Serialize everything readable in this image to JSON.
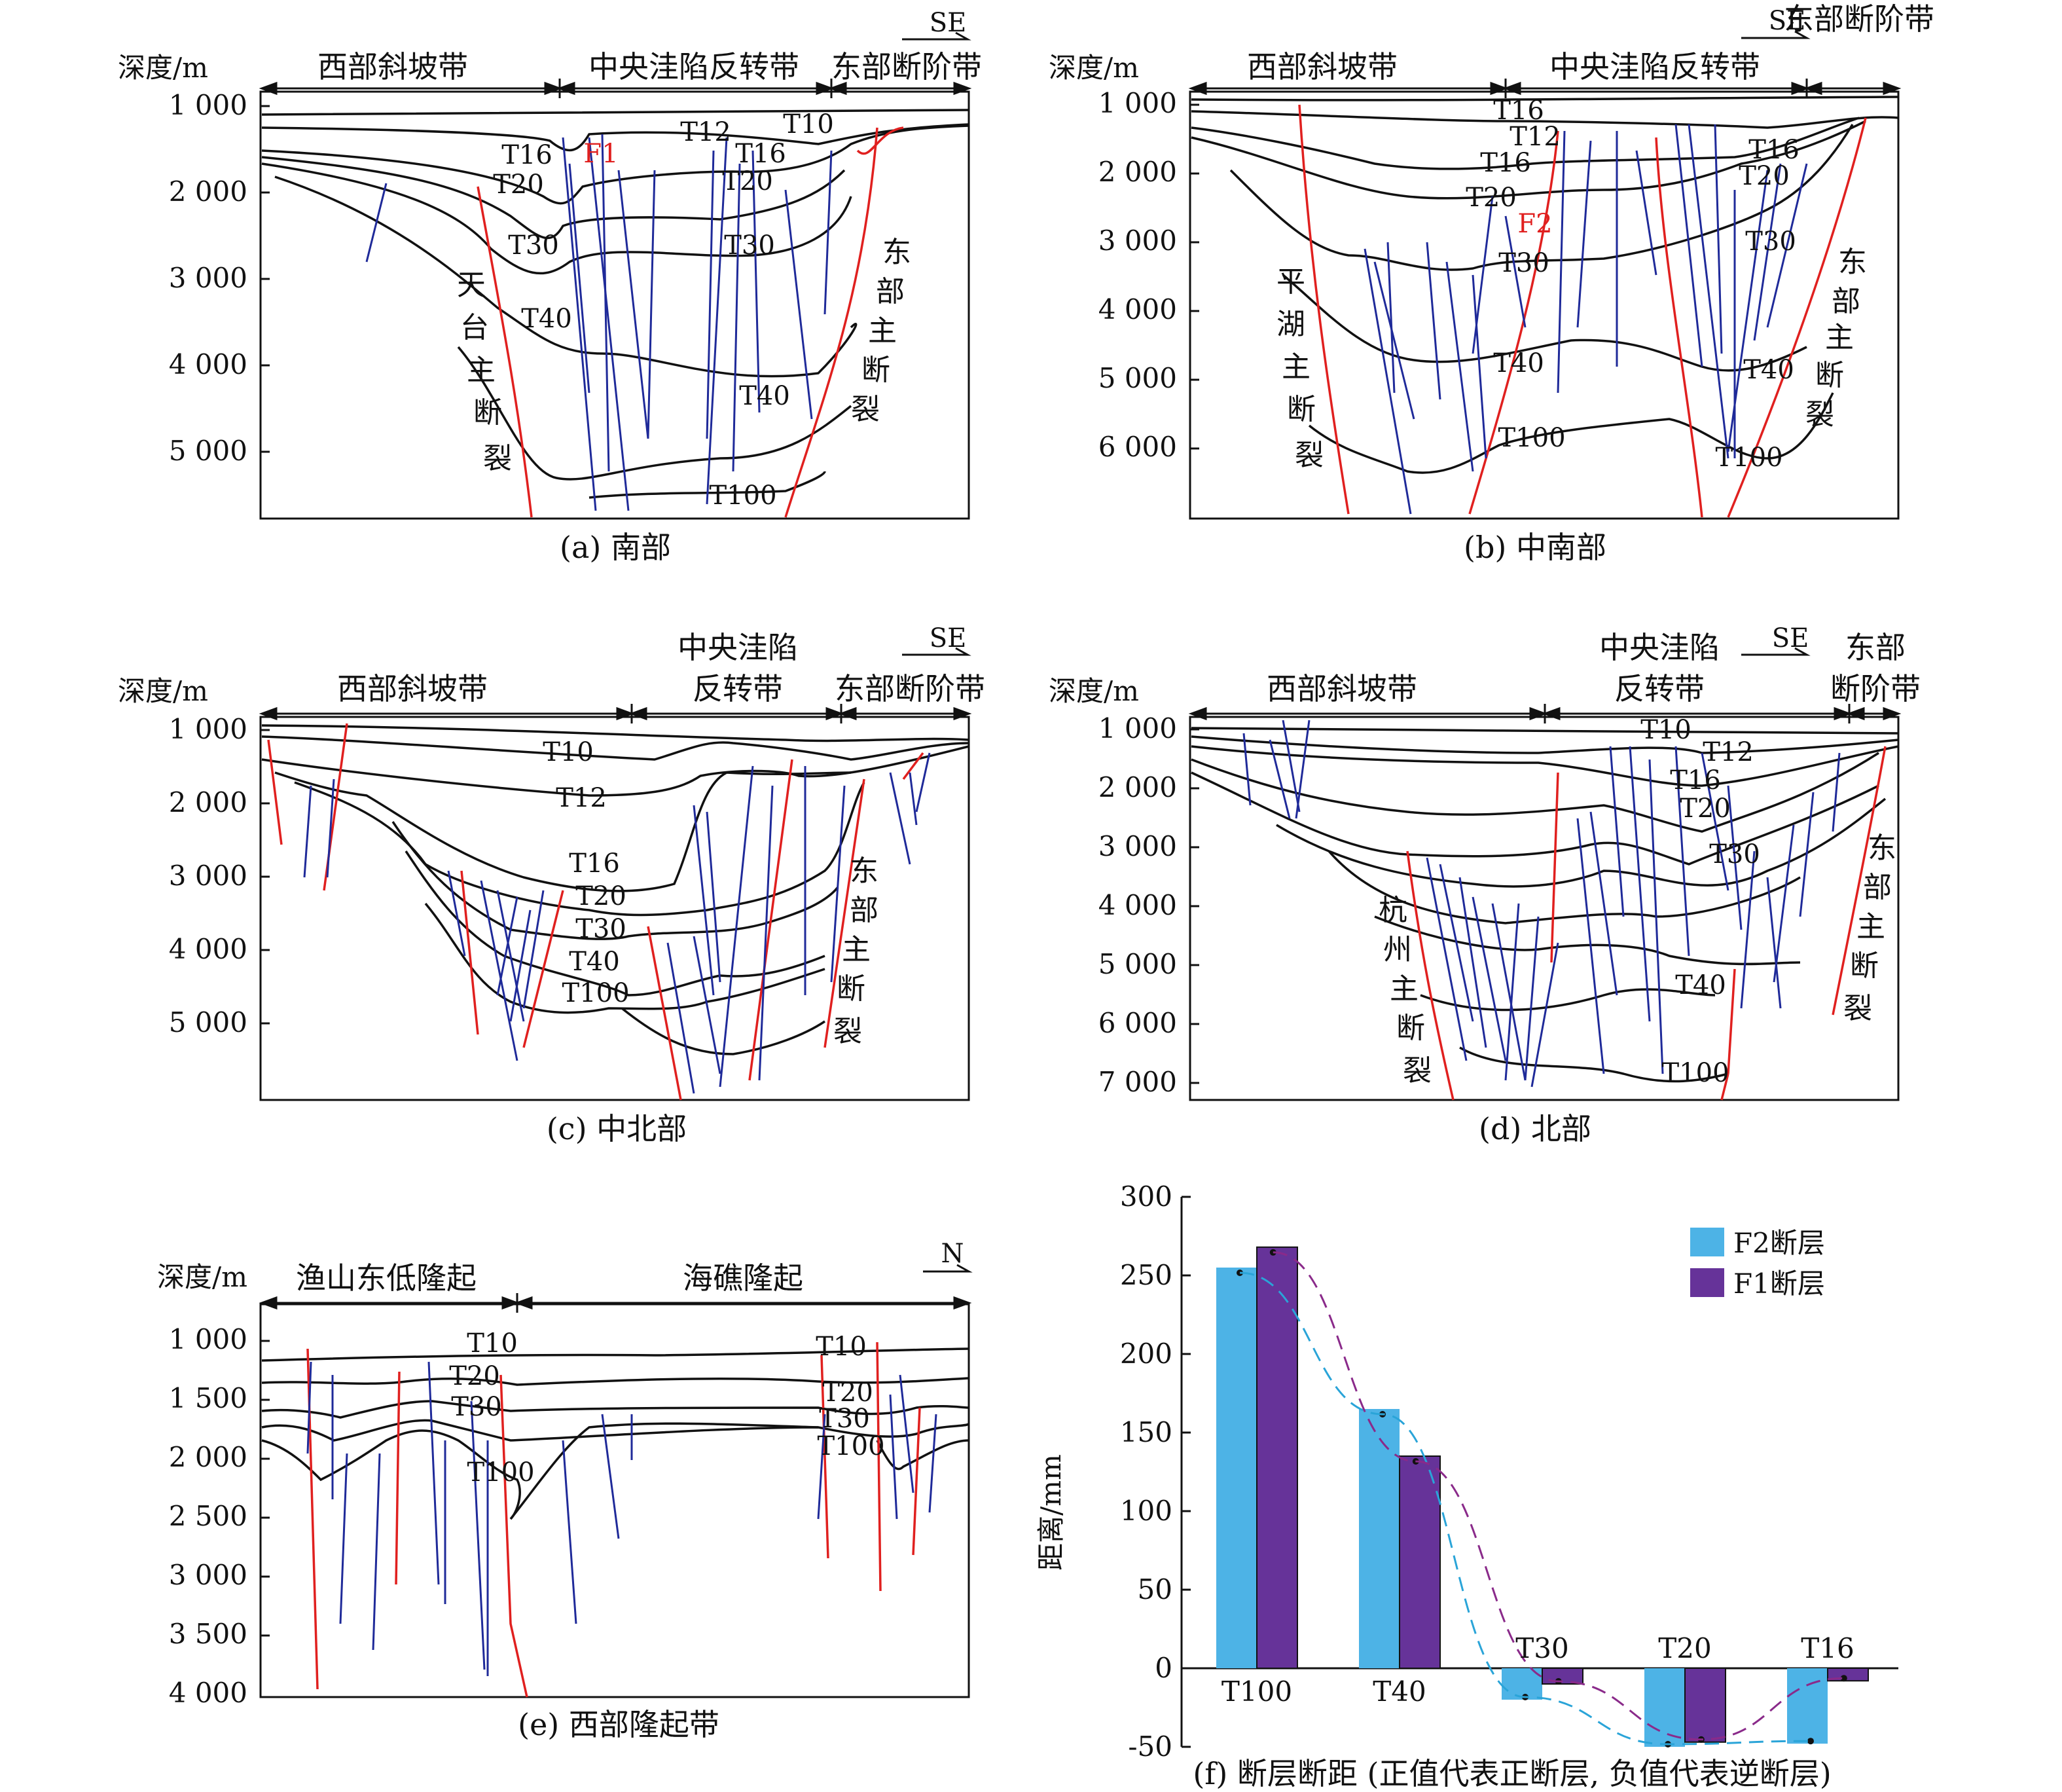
{
  "panels": [
    {
      "id": "a",
      "caption": "(a) 南部",
      "ylabel": "深度/m",
      "depth_ticks": [
        "1 000",
        "2 000",
        "3 000",
        "4 000",
        "5 000"
      ],
      "direction": "SE",
      "regions": [
        "西部斜坡带",
        "中央洼陷反转带",
        "东部断阶带"
      ],
      "horizons": [
        "T16",
        "T20",
        "T30",
        "T40",
        "T12",
        "T10",
        "T16",
        "T20",
        "T30",
        "T40",
        "T100"
      ],
      "fault_labels": [
        "F1"
      ],
      "main_faults": [
        "天台主断裂",
        "东部主断裂"
      ]
    },
    {
      "id": "b",
      "caption": "(b) 中南部",
      "ylabel": "深度/m",
      "depth_ticks": [
        "1 000",
        "2 000",
        "3 000",
        "4 000",
        "5 000",
        "6 000"
      ],
      "direction": "SE",
      "regions": [
        "西部斜坡带",
        "中央洼陷反转带",
        "东部断阶带"
      ],
      "horizons": [
        "T16",
        "T12",
        "T16",
        "T20",
        "T30",
        "T40",
        "T100",
        "T16",
        "T20",
        "T30",
        "T40",
        "T100"
      ],
      "fault_labels": [
        "F2"
      ],
      "main_faults": [
        "平湖主断裂",
        "东部主断裂"
      ]
    },
    {
      "id": "c",
      "caption": "(c) 中北部",
      "ylabel": "深度/m",
      "depth_ticks": [
        "1 000",
        "2 000",
        "3 000",
        "4 000",
        "5 000"
      ],
      "direction": "SE",
      "regions": [
        "西部斜坡带",
        "中央洼陷反转带",
        "东部断阶带"
      ],
      "horizons": [
        "T10",
        "T12",
        "T16",
        "T20",
        "T30",
        "T40",
        "T100"
      ],
      "main_faults": [
        "东部主断裂"
      ]
    },
    {
      "id": "d",
      "caption": "(d) 北部",
      "ylabel": "深度/m",
      "depth_ticks": [
        "1 000",
        "2 000",
        "3 000",
        "4 000",
        "5 000",
        "6 000",
        "7 000"
      ],
      "direction": "SE",
      "regions": [
        "西部斜坡带",
        "中央洼陷反转带",
        "东部断阶带"
      ],
      "horizons": [
        "T10",
        "T12",
        "T16",
        "T20",
        "T30",
        "T40",
        "T100"
      ],
      "main_faults": [
        "杭州主断裂",
        "东部主断裂"
      ]
    },
    {
      "id": "e",
      "caption": "(e) 西部隆起带",
      "ylabel": "深度/m",
      "depth_ticks": [
        "1 000",
        "1 500",
        "2 000",
        "2 500",
        "3 000",
        "3 500",
        "4 000"
      ],
      "direction": "N",
      "regions": [
        "渔山东低隆起",
        "海礁隆起"
      ],
      "horizons": [
        "T10",
        "T20",
        "T30",
        "T100",
        "T10",
        "T20",
        "T30",
        "T100"
      ]
    }
  ],
  "chart_data": {
    "type": "bar",
    "caption": "(f) 断层断距 (正值代表正断层, 负值代表逆断层)",
    "ylabel": "距离/mm",
    "categories": [
      "T100",
      "T40",
      "T30",
      "T20",
      "T16"
    ],
    "ylim": [
      -50,
      300
    ],
    "yticks": [
      -50,
      0,
      50,
      100,
      150,
      200,
      250,
      300
    ],
    "legend_position": "top-right",
    "series": [
      {
        "name": "F2断层",
        "values": [
          255,
          165,
          -20,
          -50,
          -48
        ],
        "color": "#4db3e6"
      },
      {
        "name": "F1断层",
        "values": [
          268,
          135,
          -10,
          -47,
          -8
        ],
        "color": "#663399"
      }
    ]
  }
}
